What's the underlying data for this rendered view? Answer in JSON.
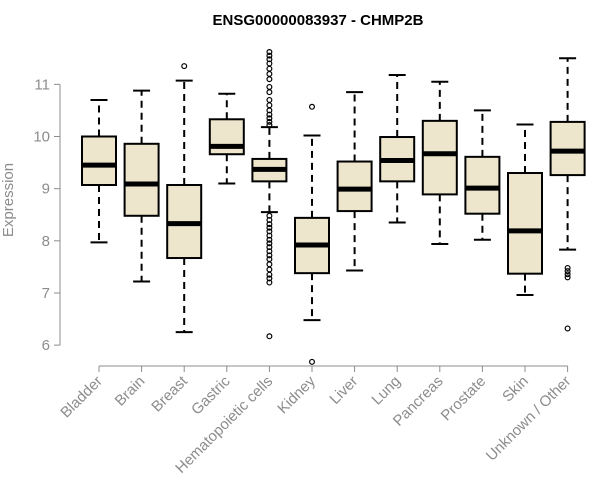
{
  "chart_data": {
    "type": "boxplot",
    "title": "ENSG00000083937 - CHMP2B",
    "xlabel": "",
    "ylabel": "Expression",
    "ylim": [
      5.6,
      11.85
    ],
    "yticks": [
      6,
      7,
      8,
      9,
      10,
      11
    ],
    "grid": false,
    "colors": {
      "box_fill": "#ede5cc",
      "stroke": "#000000",
      "axis": "#8c8c8c"
    },
    "categories": [
      "Bladder",
      "Brain",
      "Breast",
      "Gastric",
      "Hematopoietic cells",
      "Kidney",
      "Liver",
      "Lung",
      "Pancreas",
      "Prostate",
      "Skin",
      "Unknown / Other"
    ],
    "boxes": [
      {
        "whisker_low": 7.97,
        "q1": 9.07,
        "median": 9.45,
        "q3": 10.0,
        "whisker_high": 10.7,
        "outliers": []
      },
      {
        "whisker_low": 7.22,
        "q1": 8.48,
        "median": 9.09,
        "q3": 9.86,
        "whisker_high": 10.88,
        "outliers": []
      },
      {
        "whisker_low": 6.25,
        "q1": 7.67,
        "median": 8.33,
        "q3": 9.07,
        "whisker_high": 11.07,
        "outliers": [
          11.35
        ]
      },
      {
        "whisker_low": 9.1,
        "q1": 9.66,
        "median": 9.81,
        "q3": 10.33,
        "whisker_high": 10.82,
        "outliers": []
      },
      {
        "whisker_low": 8.55,
        "q1": 9.14,
        "median": 9.37,
        "q3": 9.57,
        "whisker_high": 10.18,
        "outliers": [
          11.62,
          11.55,
          11.48,
          11.4,
          11.3,
          11.2,
          11.1,
          10.95,
          10.85,
          10.7,
          10.6,
          10.5,
          10.42,
          10.35,
          10.28,
          10.22,
          8.48,
          8.4,
          8.32,
          8.25,
          8.18,
          8.1,
          8.02,
          7.95,
          7.88,
          7.8,
          7.72,
          7.65,
          7.55,
          7.45,
          7.35,
          7.28,
          7.2,
          6.17
        ]
      },
      {
        "whisker_low": 6.48,
        "q1": 7.38,
        "median": 7.92,
        "q3": 8.44,
        "whisker_high": 10.02,
        "outliers": [
          10.57,
          5.68
        ]
      },
      {
        "whisker_low": 7.43,
        "q1": 8.57,
        "median": 8.99,
        "q3": 9.52,
        "whisker_high": 10.85,
        "outliers": []
      },
      {
        "whisker_low": 8.35,
        "q1": 9.14,
        "median": 9.54,
        "q3": 9.99,
        "whisker_high": 11.18,
        "outliers": []
      },
      {
        "whisker_low": 7.94,
        "q1": 8.89,
        "median": 9.67,
        "q3": 10.3,
        "whisker_high": 11.05,
        "outliers": []
      },
      {
        "whisker_low": 8.02,
        "q1": 8.52,
        "median": 9.01,
        "q3": 9.61,
        "whisker_high": 10.5,
        "outliers": []
      },
      {
        "whisker_low": 6.96,
        "q1": 7.37,
        "median": 8.19,
        "q3": 9.3,
        "whisker_high": 10.23,
        "outliers": []
      },
      {
        "whisker_low": 7.83,
        "q1": 9.26,
        "median": 9.72,
        "q3": 10.28,
        "whisker_high": 11.5,
        "outliers": [
          7.48,
          7.42,
          7.36,
          7.3,
          6.32
        ]
      }
    ]
  }
}
